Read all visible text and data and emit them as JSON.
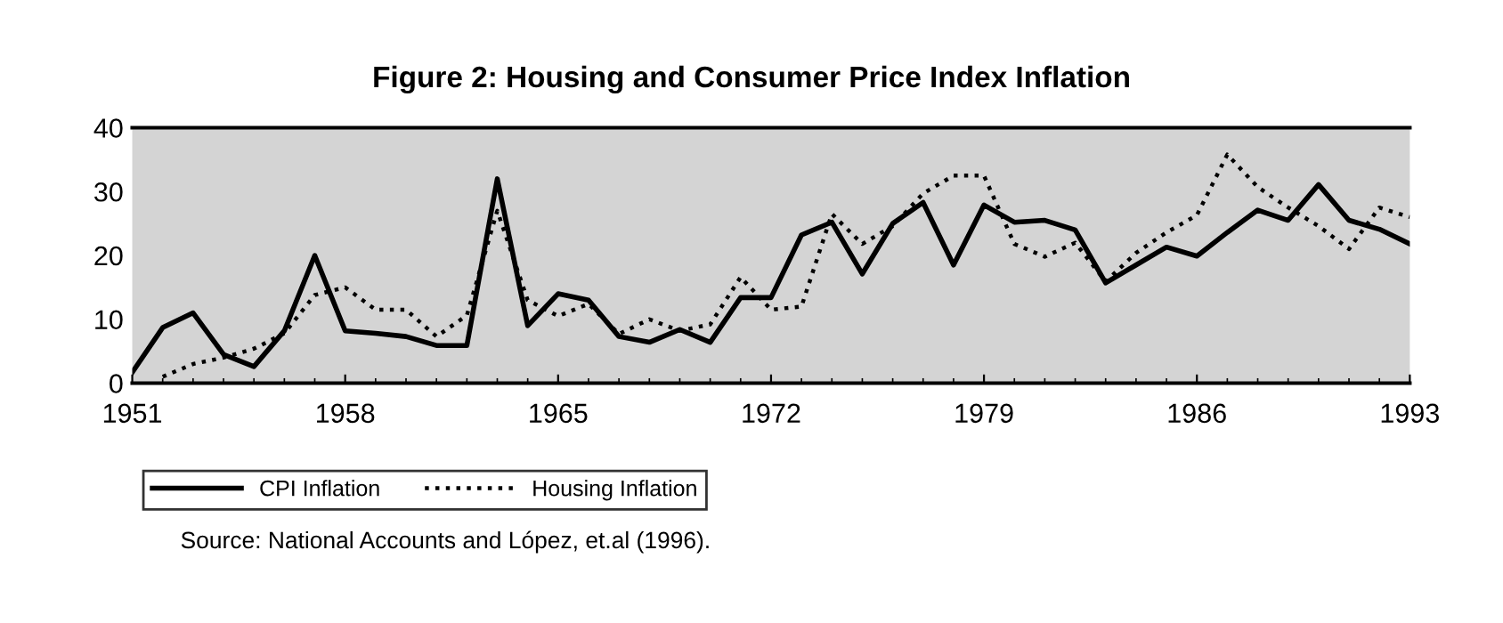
{
  "chart_data": {
    "type": "line",
    "title": "Figure 2: Housing and Consumer Price Index Inflation",
    "x": [
      1951,
      1952,
      1953,
      1954,
      1955,
      1956,
      1957,
      1958,
      1959,
      1960,
      1961,
      1962,
      1963,
      1964,
      1965,
      1966,
      1967,
      1968,
      1969,
      1970,
      1971,
      1972,
      1973,
      1974,
      1975,
      1976,
      1977,
      1978,
      1979,
      1980,
      1981,
      1982,
      1983,
      1984,
      1985,
      1986,
      1987,
      1988,
      1989,
      1990,
      1991,
      1992,
      1993
    ],
    "series": [
      {
        "name": "CPI Inflation",
        "color": "#000000",
        "line_style": "solid",
        "values": [
          1.7,
          8.7,
          11,
          4.5,
          2.6,
          8.2,
          20,
          8.2,
          7.8,
          7.3,
          5.9,
          5.9,
          32,
          9,
          14,
          13,
          7.3,
          6.4,
          8.4,
          6.4,
          13.4,
          13.4,
          23.2,
          25.2,
          17.1,
          25,
          28.3,
          18.5,
          27.9,
          25.2,
          25.5,
          24,
          15.7,
          18.5,
          21.3,
          19.9,
          23.6,
          27.1,
          25.5,
          31.1,
          25.5,
          24.1,
          21.8
        ]
      },
      {
        "name": "Housing Inflation",
        "color": "#000000",
        "line_style": "dotted",
        "values": [
          null,
          1,
          3,
          4,
          5.4,
          7.8,
          13.8,
          15,
          11.5,
          11.5,
          7.3,
          10.6,
          27,
          13,
          10.5,
          12.4,
          7.7,
          10,
          8.2,
          9.2,
          16.6,
          11.5,
          12,
          26.5,
          21.8,
          24.6,
          29.7,
          32.5,
          32.5,
          21.8,
          19.8,
          22,
          15.9,
          20.4,
          23.6,
          26.3,
          35.8,
          30.7,
          27.5,
          24.6,
          21,
          27.5,
          26
        ]
      }
    ],
    "xlim": [
      1951,
      1993
    ],
    "xticks": [
      1951,
      1958,
      1965,
      1972,
      1979,
      1986,
      1993
    ],
    "ylim": [
      0,
      40
    ],
    "yticks": [
      0,
      10,
      20,
      30,
      40
    ],
    "grid": false,
    "legend": "bottom",
    "marker": "none",
    "annotations": [
      "Source: National Accounts and López, et.al (1996)."
    ]
  }
}
